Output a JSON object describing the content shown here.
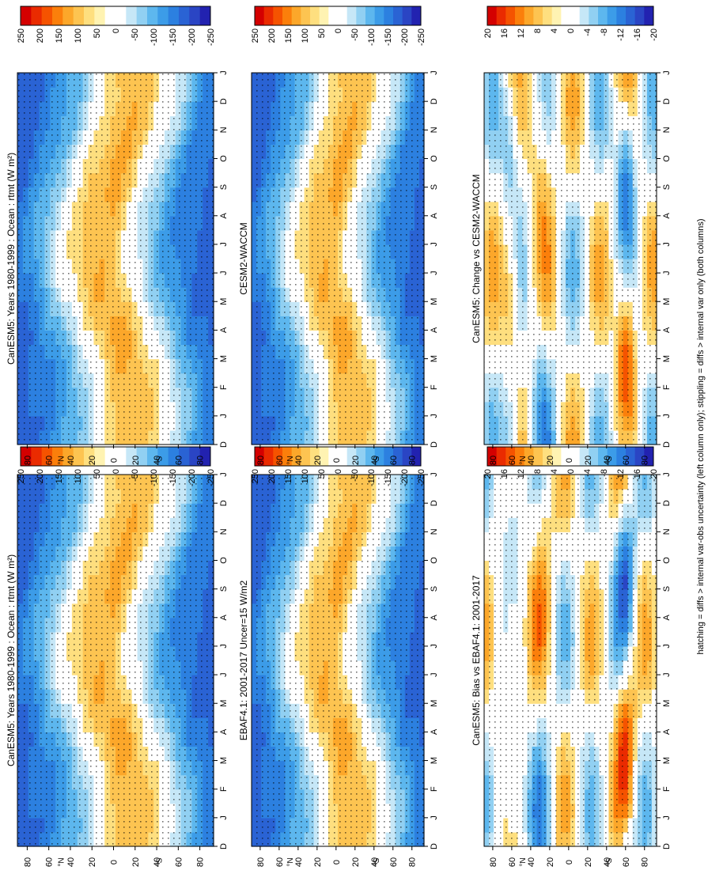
{
  "footnote": "hatching = diffs > internal var-obs uncertainty (left column only); stippling = diffs > internal var only (both columns)",
  "chart_data": [
    {
      "type": "heatmap",
      "title": "CanESM5: Years 1980-1999 : Ocean : rtmt (W m²)",
      "xlabel": "",
      "ylabel": "°N   °S",
      "x_ticks": [
        "D",
        "J",
        "F",
        "M",
        "A",
        "M",
        "J",
        "J",
        "A",
        "S",
        "O",
        "N",
        "D",
        "J"
      ],
      "y_ticks": [
        "80",
        "60",
        "40",
        "20",
        "0",
        "20",
        "40",
        "60",
        "80"
      ],
      "ylim": [
        -90,
        90
      ],
      "colorbar": [
        "250",
        "200",
        "150",
        "100",
        "50",
        "0",
        "-50",
        "-100",
        "-150",
        "-200",
        "-250"
      ],
      "field": "rtmt",
      "hatching": true
    },
    {
      "type": "heatmap",
      "title": "CanESM5: Years 1980-1999 : Ocean : rtmt (W m²)",
      "xlabel": "",
      "ylabel": "°N   °S",
      "x_ticks": [
        "D",
        "J",
        "F",
        "M",
        "A",
        "M",
        "J",
        "J",
        "A",
        "S",
        "O",
        "N",
        "D",
        "J"
      ],
      "y_ticks": [
        "80",
        "60",
        "40",
        "20",
        "0",
        "20",
        "40",
        "60",
        "80"
      ],
      "ylim": [
        -90,
        90
      ],
      "colorbar": [
        "250",
        "200",
        "150",
        "100",
        "50",
        "0",
        "-50",
        "-100",
        "-150",
        "-200",
        "-250"
      ],
      "field": "rtmt",
      "hatching": false
    },
    {
      "type": "heatmap",
      "title": "EBAF4.1: 2001-2017 Uncer=15 W/m2",
      "xlabel": "",
      "ylabel": "°N   °S",
      "x_ticks": [
        "D",
        "J",
        "F",
        "M",
        "A",
        "M",
        "J",
        "J",
        "A",
        "S",
        "O",
        "N",
        "D",
        "J"
      ],
      "y_ticks": [
        "80",
        "60",
        "40",
        "20",
        "0",
        "20",
        "40",
        "60",
        "80"
      ],
      "ylim": [
        -90,
        90
      ],
      "colorbar": [
        "250",
        "200",
        "150",
        "100",
        "50",
        "0",
        "-50",
        "-100",
        "-150",
        "-200",
        "-250"
      ],
      "field": "rtmt",
      "hatching": true
    },
    {
      "type": "heatmap",
      "title": "CESM2-WACCM",
      "xlabel": "",
      "ylabel": "°N   °S",
      "x_ticks": [
        "D",
        "J",
        "F",
        "M",
        "A",
        "M",
        "J",
        "J",
        "A",
        "S",
        "O",
        "N",
        "D",
        "J"
      ],
      "y_ticks": [
        "80",
        "60",
        "40",
        "20",
        "0",
        "20",
        "40",
        "60",
        "80"
      ],
      "ylim": [
        -90,
        90
      ],
      "colorbar": [
        "250",
        "200",
        "150",
        "100",
        "50",
        "0",
        "-50",
        "-100",
        "-150",
        "-200",
        "-250"
      ],
      "field": "rtmt",
      "hatching": false
    },
    {
      "type": "heatmap",
      "title": "CanESM5: Bias vs EBAF4.1: 2001-2017",
      "xlabel": "",
      "ylabel": "°N   °S",
      "x_ticks": [
        "D",
        "J",
        "F",
        "M",
        "A",
        "M",
        "J",
        "J",
        "A",
        "S",
        "O",
        "N",
        "D",
        "J"
      ],
      "y_ticks": [
        "80",
        "60",
        "40",
        "20",
        "0",
        "20",
        "40",
        "60",
        "80"
      ],
      "ylim": [
        -90,
        90
      ],
      "colorbar": [
        "20",
        "16",
        "12",
        "8",
        "4",
        "0",
        "-4",
        "-8",
        "-12",
        "-16",
        "-20"
      ],
      "field": "diff",
      "hatching": true
    },
    {
      "type": "heatmap",
      "title": "CanESM5: Change vs CESM2-WACCM",
      "xlabel": "",
      "ylabel": "°N   °S",
      "x_ticks": [
        "D",
        "J",
        "F",
        "M",
        "A",
        "M",
        "J",
        "J",
        "A",
        "S",
        "O",
        "N",
        "D",
        "J"
      ],
      "y_ticks": [
        "80",
        "60",
        "40",
        "20",
        "0",
        "20",
        "40",
        "60",
        "80"
      ],
      "ylim": [
        -90,
        90
      ],
      "colorbar": [
        "20",
        "16",
        "12",
        "8",
        "4",
        "0",
        "-4",
        "-8",
        "-12",
        "-16",
        "-20"
      ],
      "field": "diff",
      "hatching": false
    }
  ]
}
